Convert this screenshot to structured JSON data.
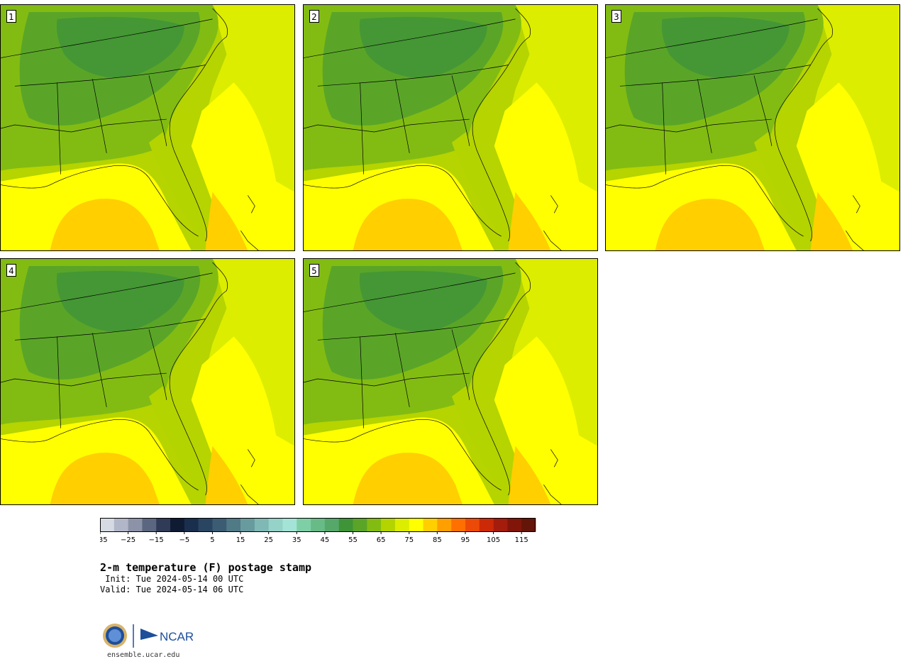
{
  "panels": [
    {
      "label": "1"
    },
    {
      "label": "2"
    },
    {
      "label": "3"
    },
    {
      "label": "4"
    },
    {
      "label": "5"
    }
  ],
  "colorbar": {
    "tick_labels": [
      "−35",
      "−25",
      "−15",
      "−5",
      "5",
      "15",
      "25",
      "35",
      "45",
      "55",
      "65",
      "75",
      "85",
      "95",
      "105",
      "115"
    ],
    "colors": [
      "#d6dbe3",
      "#b1b6c8",
      "#8c93a8",
      "#5b6780",
      "#2f3b57",
      "#0f1a33",
      "#1a2e4d",
      "#2a4561",
      "#3b5c73",
      "#507a86",
      "#689b9e",
      "#7fb8b4",
      "#95d2c7",
      "#a3e4d6",
      "#7fcfa6",
      "#68bb86",
      "#55a86a",
      "#3e9437",
      "#5aa528",
      "#82bc12",
      "#b4d400",
      "#dced00",
      "#ffff00",
      "#ffcf00",
      "#ff9f00",
      "#ff7000",
      "#ee4a07",
      "#cc2a06",
      "#a31c0c",
      "#821509",
      "#651408"
    ],
    "min": -35,
    "max": 120,
    "step": 5
  },
  "title": "2-m temperature (F) postage stamp",
  "init_text": " Init: Tue 2024-05-14 00 UTC",
  "valid_text": "Valid: Tue 2024-05-14 06 UTC",
  "logo": {
    "agency1": "NSF",
    "agency2": "NCAR"
  },
  "website": "ensemble.ucar.edu"
}
